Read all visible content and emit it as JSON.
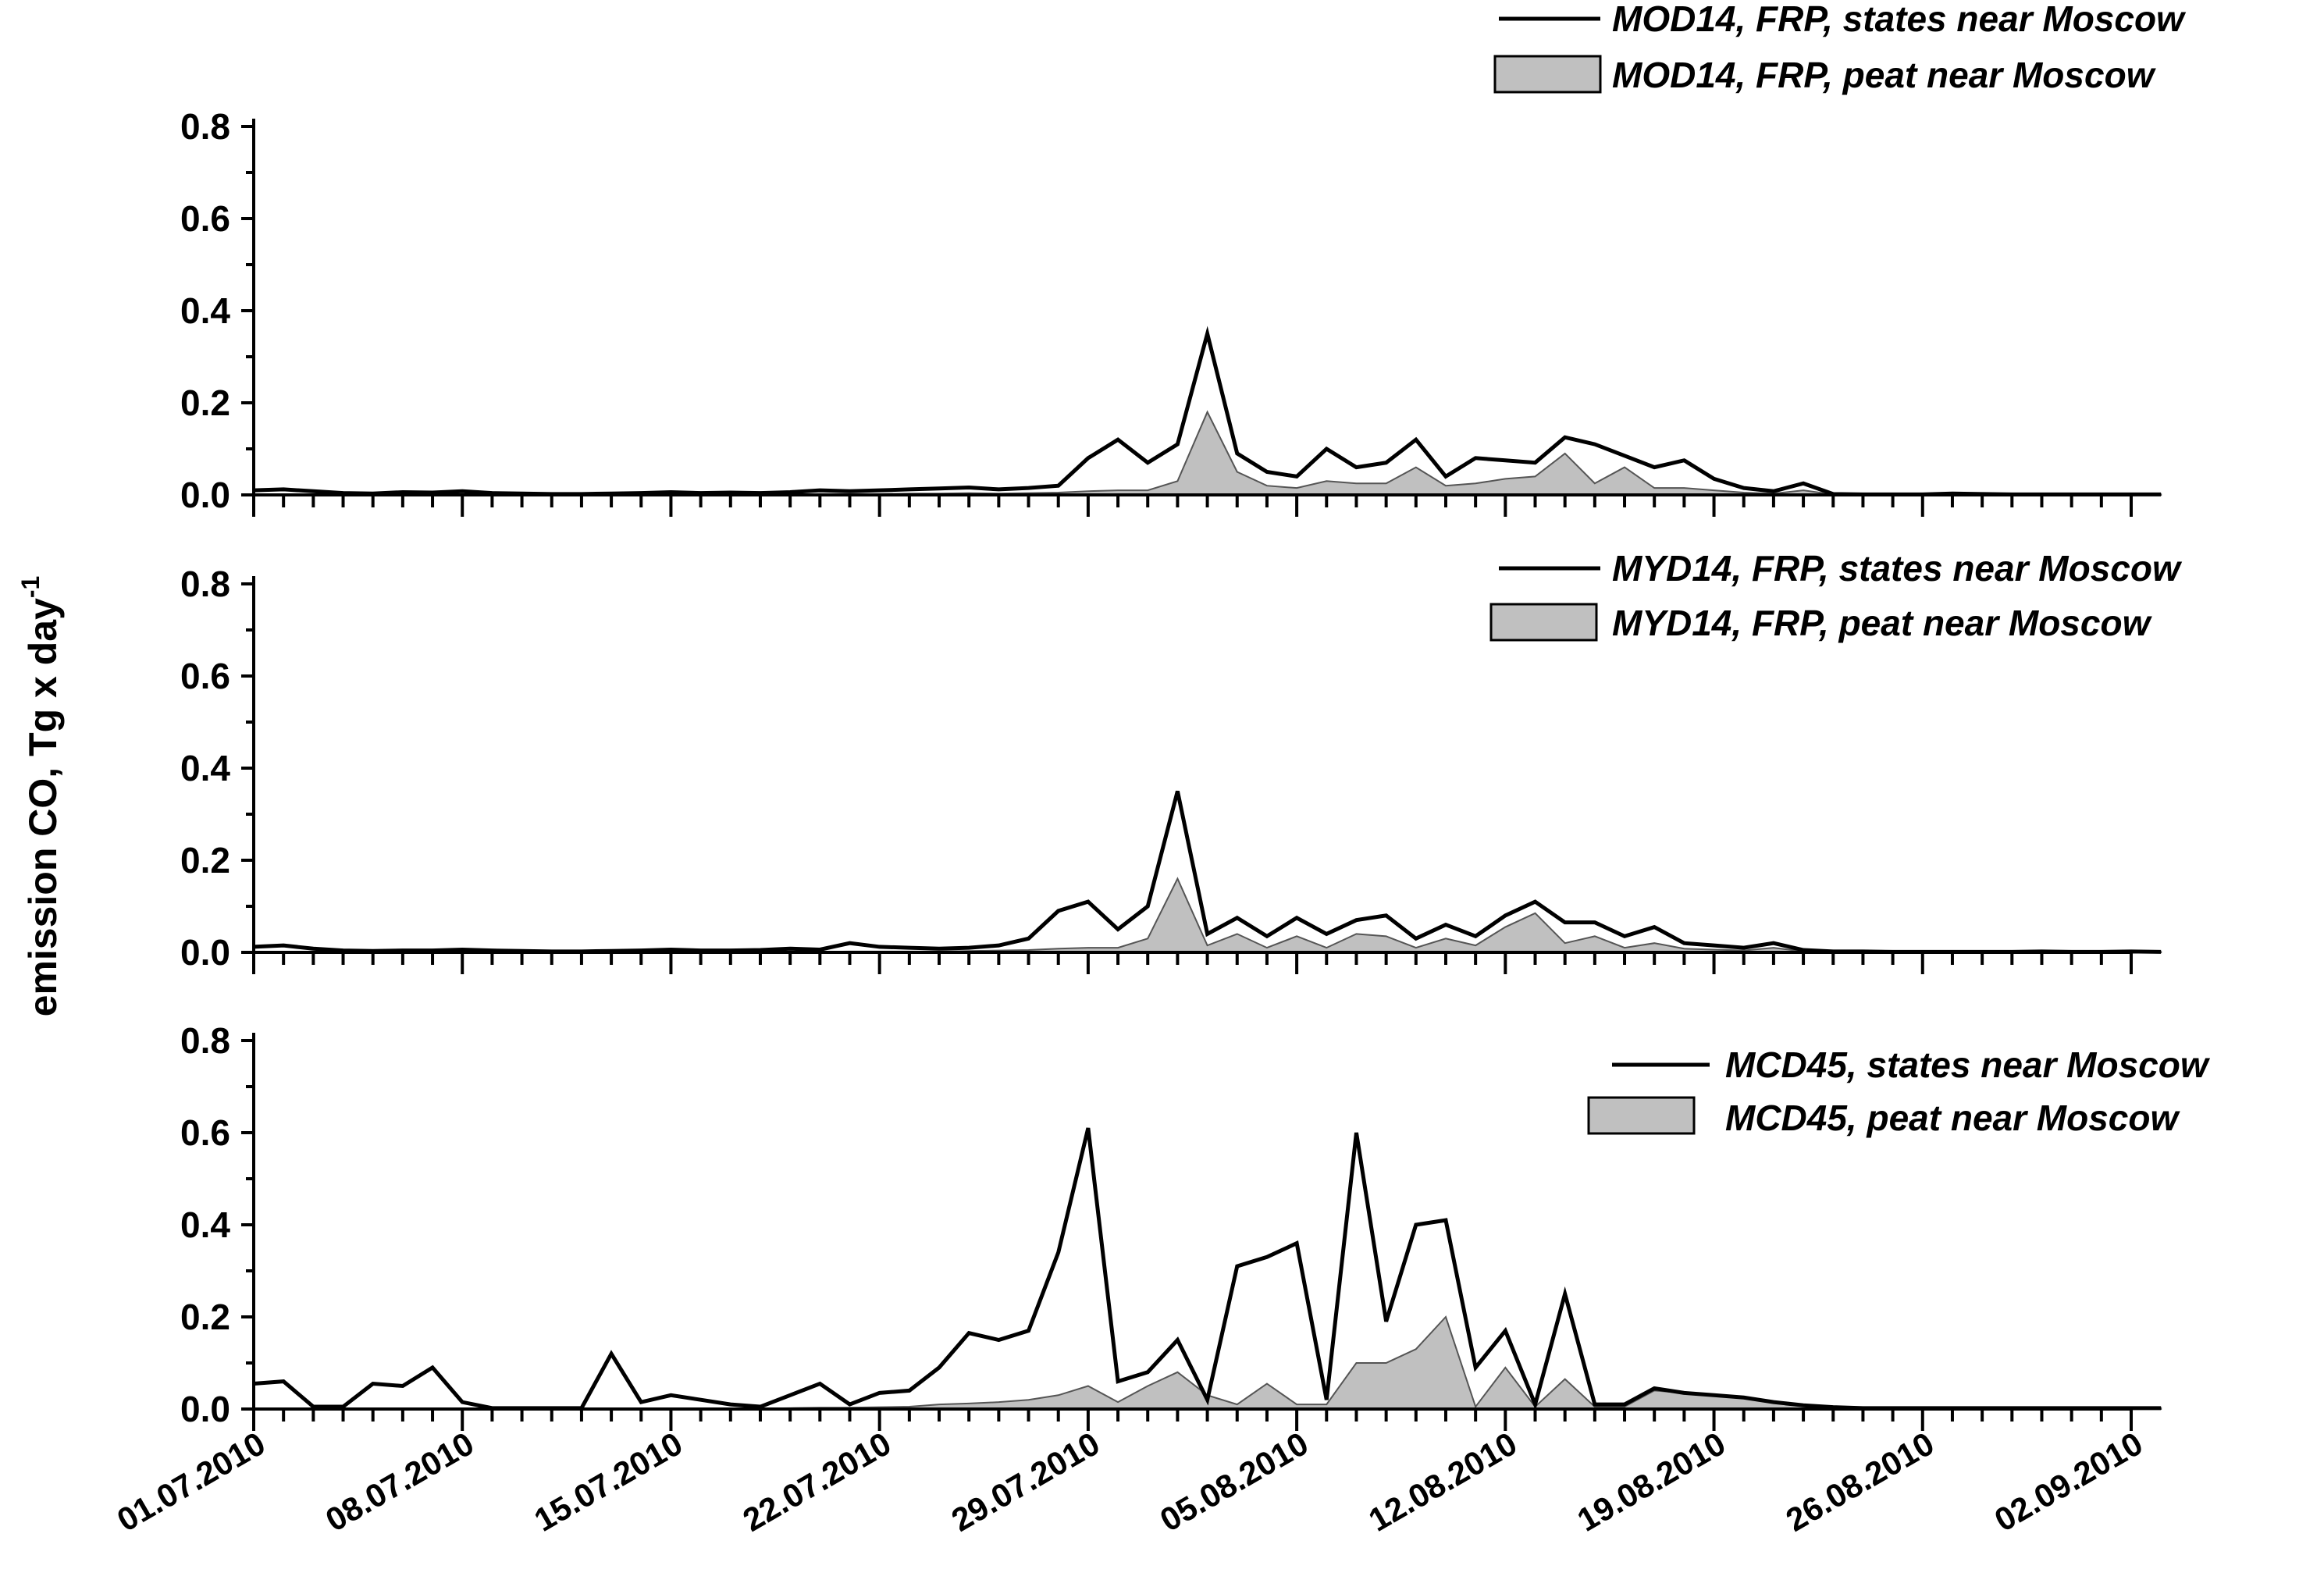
{
  "figure": {
    "ylabel_main": "emission CO, Tg x day",
    "ylabel_superscript": "-1",
    "x_tick_labels": [
      "01.07.2010",
      "08.07.2010",
      "15.07.2010",
      "22.07.2010",
      "29.07.2010",
      "05.08.2010",
      "12.08.2010",
      "19.08.2010",
      "26.08.2010",
      "02.09.2010"
    ]
  },
  "chart_data": [
    {
      "type": "area",
      "panel": "top",
      "x_start": "01.07.2010",
      "x_step_days": 1,
      "xlim": [
        "01.07.2010",
        "02.09.2010"
      ],
      "ylim": [
        0,
        0.8
      ],
      "y_ticks": [
        "0.0",
        "0.2",
        "0.4",
        "0.6",
        "0.8"
      ],
      "legend_position": "top-right",
      "series": [
        {
          "name": "MOD14, FRP, states near Moscow",
          "style": "line",
          "color": "#000000",
          "values": [
            0.01,
            0.012,
            0.008,
            0.004,
            0.003,
            0.006,
            0.005,
            0.008,
            0.004,
            0.003,
            0.002,
            0.002,
            0.003,
            0.004,
            0.006,
            0.004,
            0.005,
            0.004,
            0.006,
            0.01,
            0.008,
            0.01,
            0.012,
            0.014,
            0.016,
            0.012,
            0.015,
            0.02,
            0.08,
            0.12,
            0.07,
            0.11,
            0.35,
            0.09,
            0.05,
            0.04,
            0.1,
            0.06,
            0.07,
            0.12,
            0.04,
            0.08,
            0.075,
            0.07,
            0.125,
            0.11,
            0.085,
            0.06,
            0.075,
            0.035,
            0.015,
            0.008,
            0.025,
            0.002,
            0.001,
            0.001,
            0.001,
            0.003,
            0.002,
            0.001,
            0.001,
            0.001,
            0.001,
            0.001,
            0.001
          ]
        },
        {
          "name": "MOD14, FRP,  peat near Moscow",
          "style": "area",
          "color": "#c0c0c0",
          "values": [
            0.001,
            0.001,
            0.001,
            0.001,
            0.001,
            0.001,
            0.001,
            0.001,
            0.001,
            0.001,
            0.001,
            0.001,
            0.001,
            0.001,
            0.001,
            0.001,
            0.001,
            0.001,
            0.001,
            0.002,
            0.002,
            0.002,
            0.003,
            0.003,
            0.004,
            0.003,
            0.004,
            0.005,
            0.008,
            0.01,
            0.01,
            0.03,
            0.18,
            0.05,
            0.02,
            0.015,
            0.03,
            0.025,
            0.025,
            0.06,
            0.02,
            0.025,
            0.035,
            0.04,
            0.09,
            0.025,
            0.06,
            0.015,
            0.015,
            0.01,
            0.005,
            0.003,
            0.01,
            0.001,
            0.001,
            0.001,
            0.001,
            0.001,
            0.001,
            0.001,
            0.001,
            0.001,
            0.001,
            0.001,
            0.001
          ]
        }
      ]
    },
    {
      "type": "area",
      "panel": "middle",
      "x_start": "01.07.2010",
      "x_step_days": 1,
      "xlim": [
        "01.07.2010",
        "02.09.2010"
      ],
      "ylim": [
        0,
        0.8
      ],
      "y_ticks": [
        "0.0",
        "0.2",
        "0.4",
        "0.6",
        "0.8"
      ],
      "legend_position": "top-right",
      "series": [
        {
          "name": "MYD14, FRP, states near Moscow",
          "style": "line",
          "color": "#000000",
          "values": [
            0.012,
            0.015,
            0.008,
            0.004,
            0.003,
            0.004,
            0.004,
            0.006,
            0.004,
            0.003,
            0.002,
            0.002,
            0.003,
            0.004,
            0.006,
            0.004,
            0.004,
            0.005,
            0.008,
            0.006,
            0.02,
            0.012,
            0.01,
            0.008,
            0.01,
            0.015,
            0.03,
            0.09,
            0.11,
            0.05,
            0.1,
            0.35,
            0.04,
            0.075,
            0.035,
            0.075,
            0.04,
            0.07,
            0.08,
            0.03,
            0.06,
            0.035,
            0.08,
            0.11,
            0.065,
            0.065,
            0.035,
            0.055,
            0.02,
            0.015,
            0.01,
            0.02,
            0.005,
            0.002,
            0.002,
            0.001,
            0.001,
            0.001,
            0.001,
            0.001,
            0.002,
            0.001,
            0.001,
            0.002,
            0.001
          ]
        },
        {
          "name": "MYD14, FRP,  peat near Moscow",
          "style": "area",
          "color": "#c0c0c0",
          "values": [
            0.001,
            0.001,
            0.001,
            0.001,
            0.001,
            0.001,
            0.001,
            0.001,
            0.001,
            0.001,
            0.001,
            0.001,
            0.001,
            0.001,
            0.001,
            0.001,
            0.001,
            0.001,
            0.001,
            0.001,
            0.002,
            0.002,
            0.002,
            0.002,
            0.003,
            0.004,
            0.005,
            0.008,
            0.01,
            0.01,
            0.03,
            0.16,
            0.015,
            0.04,
            0.01,
            0.035,
            0.01,
            0.04,
            0.035,
            0.01,
            0.03,
            0.015,
            0.055,
            0.085,
            0.02,
            0.035,
            0.01,
            0.02,
            0.008,
            0.006,
            0.004,
            0.01,
            0.002,
            0.001,
            0.001,
            0.001,
            0.001,
            0.001,
            0.001,
            0.001,
            0.001,
            0.001,
            0.001,
            0.001,
            0.001
          ]
        }
      ]
    },
    {
      "type": "area",
      "panel": "bottom",
      "x_start": "01.07.2010",
      "x_step_days": 1,
      "xlim": [
        "01.07.2010",
        "02.09.2010"
      ],
      "ylim": [
        0,
        0.8
      ],
      "y_ticks": [
        "0.0",
        "0.2",
        "0.4",
        "0.6",
        "0.8"
      ],
      "legend_position": "top-right",
      "series": [
        {
          "name": "MCD45, states near Moscow",
          "style": "line",
          "color": "#000000",
          "values": [
            0.055,
            0.06,
            0.005,
            0.005,
            0.055,
            0.05,
            0.09,
            0.015,
            0.002,
            0.002,
            0.002,
            0.002,
            0.12,
            0.015,
            0.03,
            0.02,
            0.01,
            0.005,
            0.03,
            0.055,
            0.01,
            0.035,
            0.04,
            0.09,
            0.165,
            0.15,
            0.17,
            0.34,
            0.61,
            0.06,
            0.08,
            0.15,
            0.02,
            0.31,
            0.33,
            0.36,
            0.02,
            0.6,
            0.19,
            0.4,
            0.41,
            0.09,
            0.17,
            0.01,
            0.25,
            0.01,
            0.01,
            0.045,
            0.035,
            0.03,
            0.025,
            0.015,
            0.008,
            0.004,
            0.002,
            0.002,
            0.002,
            0.002,
            0.002,
            0.002,
            0.002,
            0.002,
            0.002,
            0.002,
            0.002
          ]
        },
        {
          "name": "MCD45, peat near Moscow",
          "style": "area",
          "color": "#c0c0c0",
          "values": [
            0.001,
            0.001,
            0.001,
            0.001,
            0.001,
            0.001,
            0.001,
            0.001,
            0.001,
            0.001,
            0.001,
            0.001,
            0.001,
            0.001,
            0.001,
            0.001,
            0.001,
            0.001,
            0.002,
            0.003,
            0.003,
            0.004,
            0.005,
            0.01,
            0.012,
            0.015,
            0.02,
            0.03,
            0.05,
            0.015,
            0.05,
            0.08,
            0.03,
            0.01,
            0.055,
            0.01,
            0.01,
            0.1,
            0.1,
            0.13,
            0.2,
            0.005,
            0.09,
            0.005,
            0.065,
            0.005,
            0.005,
            0.04,
            0.035,
            0.03,
            0.025,
            0.015,
            0.008,
            0.004,
            0.002,
            0.002,
            0.002,
            0.002,
            0.002,
            0.002,
            0.002,
            0.002,
            0.002,
            0.002,
            0.002
          ]
        }
      ]
    }
  ]
}
